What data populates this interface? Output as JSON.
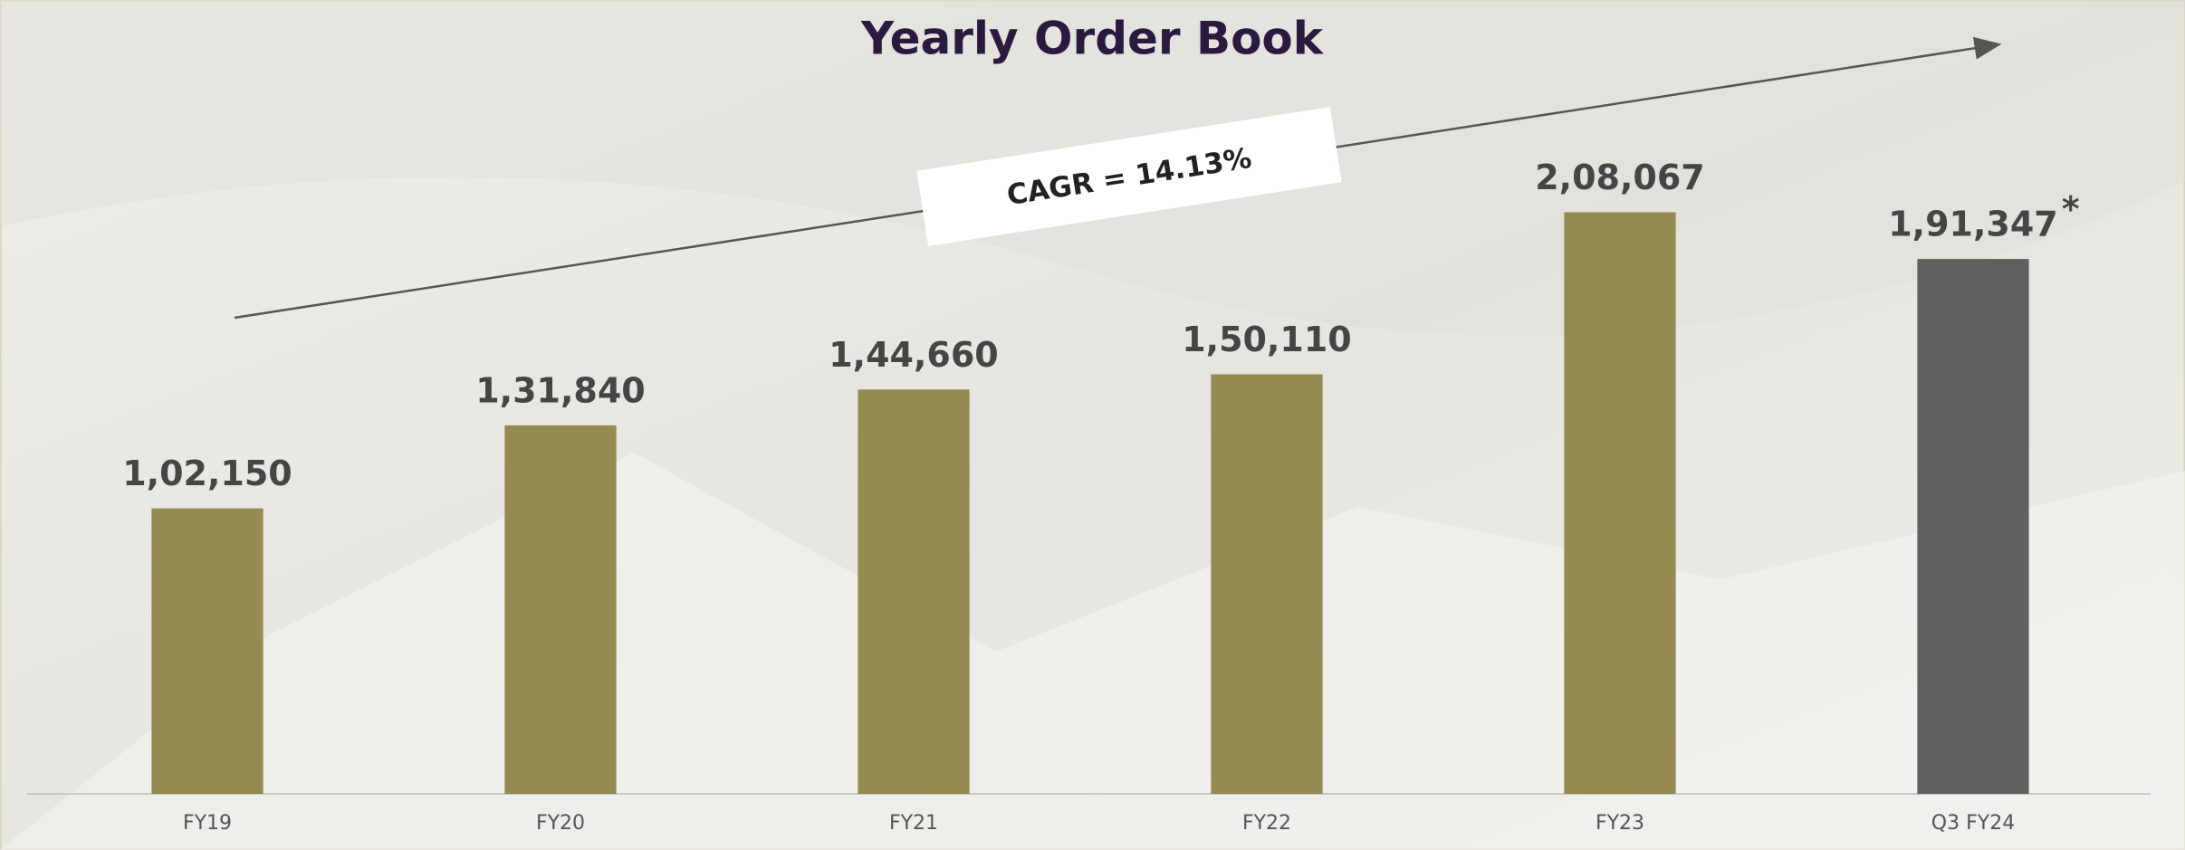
{
  "chart_data": {
    "type": "bar",
    "title": "Yearly Order Book",
    "categories": [
      "FY19",
      "FY20",
      "FY21",
      "FY22",
      "FY23",
      "Q3 FY24"
    ],
    "values": [
      102150,
      131840,
      144660,
      150110,
      208067,
      191347
    ],
    "value_labels": [
      "1,02,150",
      "1,31,840",
      "1,44,660",
      "1,50,110",
      "2,08,067",
      "1,91,347"
    ],
    "colors": [
      "#948a52",
      "#948a52",
      "#948a52",
      "#948a52",
      "#948a52",
      "#5f605f"
    ],
    "ylim": [
      0,
      250000
    ],
    "annotation": "CAGR = 14.13%",
    "marker": "*"
  }
}
